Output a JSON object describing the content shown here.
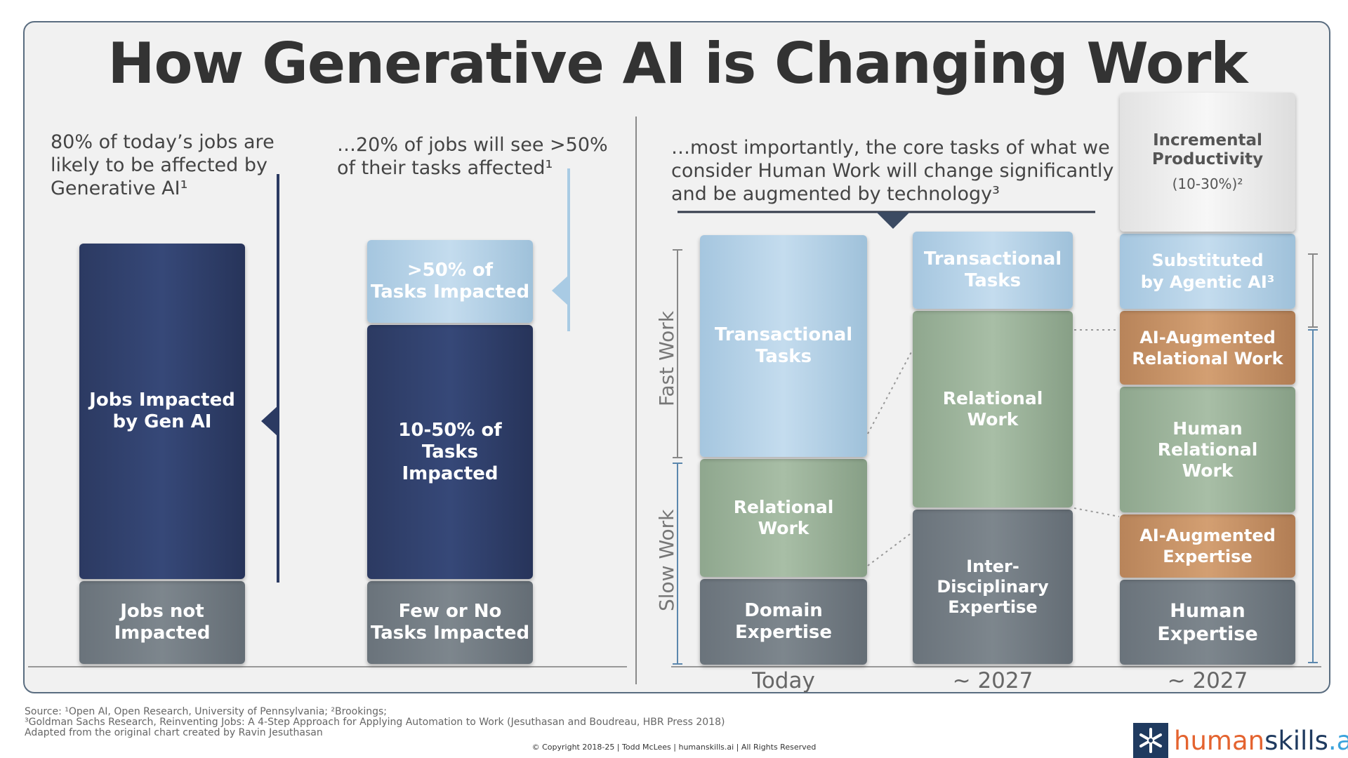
{
  "title": "How Generative AI is Changing Work",
  "headings": {
    "panel1": "80% of today’s jobs are\nlikely to be affected by\nGenerative AI¹",
    "panel2": "…20% of jobs will see >50%\nof their tasks affected¹",
    "panel3": "…most importantly, the core tasks of what we\nconsider Human Work will change significantly\nand be augmented by technology³"
  },
  "axis_labels": {
    "fast": "Fast Work",
    "slow": "Slow Work"
  },
  "chart_data": [
    {
      "type": "bar",
      "stacked": true,
      "segments": [
        {
          "label": "Jobs not\nImpacted",
          "value": 20,
          "color": "#727b83"
        },
        {
          "label": "Jobs Impacted\nby Gen AI",
          "value": 80,
          "color": "#2f3d66"
        }
      ]
    },
    {
      "type": "bar",
      "stacked": true,
      "segments": [
        {
          "label": "Few or No\nTasks Impacted",
          "value": 20,
          "color": "#727b83"
        },
        {
          "label": "10-50% of Tasks\nImpacted",
          "value": 60,
          "color": "#2f3d66"
        },
        {
          "label": ">50% of\nTasks Impacted",
          "value": 20,
          "color": "#b3d1e8"
        }
      ]
    },
    {
      "type": "bar",
      "stacked": true,
      "categories": [
        "Today",
        "~ 2027",
        "~ 2027"
      ],
      "stacks": [
        {
          "category": "Today",
          "segments": [
            {
              "label": "Domain\nExpertise",
              "color": "#727b83"
            },
            {
              "label": "Relational\nWork",
              "color": "#9bb29a"
            },
            {
              "label": "Transactional\nTasks",
              "color": "#b3d1e8"
            }
          ]
        },
        {
          "category": "~ 2027",
          "segments": [
            {
              "label": "Inter-Disciplinary\nExpertise",
              "color": "#727b83"
            },
            {
              "label": "Relational\nWork",
              "color": "#9bb29a"
            },
            {
              "label": "Transactional\nTasks",
              "color": "#b3d1e8"
            }
          ]
        },
        {
          "category": "~ 2027",
          "segments": [
            {
              "label": "Human\nExpertise",
              "color": "#727b83"
            },
            {
              "label": "AI-Augmented\nExpertise",
              "color": "#c69166"
            },
            {
              "label": "Human\nRelational\nWork",
              "color": "#9bb29a"
            },
            {
              "label": "AI-Augmented\nRelational Work",
              "color": "#c69166"
            },
            {
              "label": "Substituted\nby Agentic AI³",
              "color": "#b3d1e8"
            },
            {
              "label": "Incremental\nProductivity",
              "note": "(10-30%)²",
              "color": "#eeeeee"
            }
          ]
        }
      ]
    }
  ],
  "footer": {
    "line1": "Source: ¹Open AI, Open Research, University of Pennsylvania; ²Brookings;",
    "line2": "³Goldman Sachs Research, Reinventing Jobs: A 4-Step Approach for Applying Automation to Work (Jesuthasan and Boudreau, HBR Press 2018)",
    "line3": "Adapted from the original chart created by Ravin Jesuthasan",
    "copyright": "© Copyright 2018-25  |  Todd McLees  |  humanskills.ai  | All Rights Reserved"
  },
  "logo": {
    "part1": "human",
    "part2": "skills",
    "part3": ".ai",
    "colors": {
      "human": "#e4632f",
      "skills": "#1f3a5f",
      "ai": "#3ba3dc"
    }
  }
}
